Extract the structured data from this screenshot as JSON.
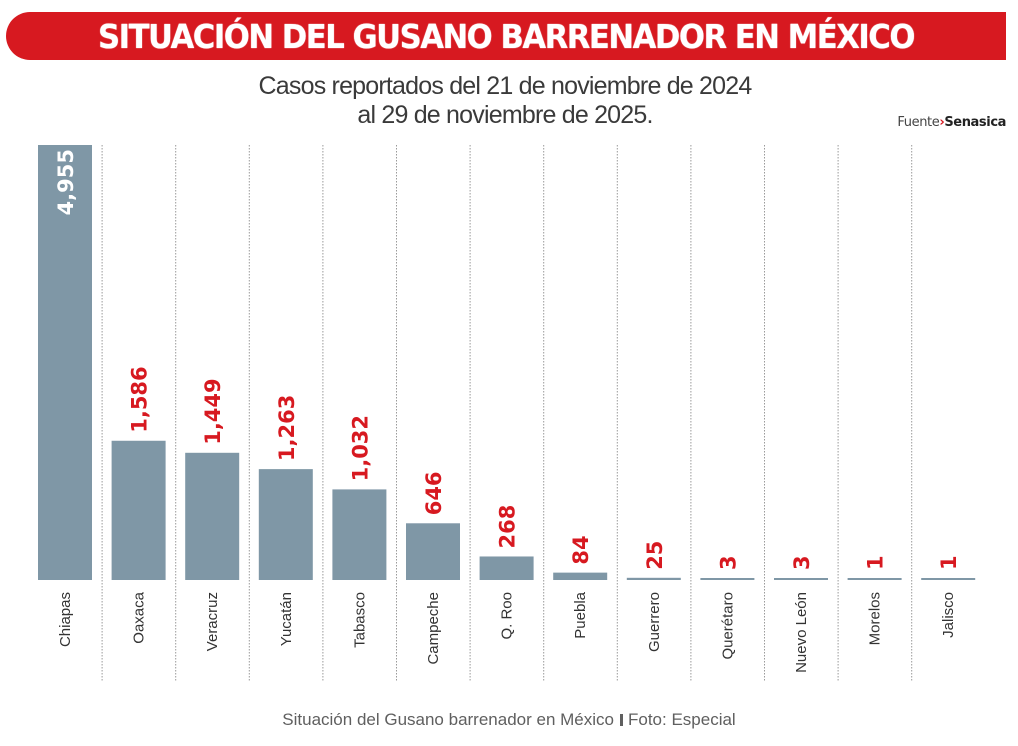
{
  "banner": {
    "title": "SITUACIÓN DEL GUSANO BARRENADOR  EN MÉXICO"
  },
  "subtitle": {
    "line1": "Casos reportados del 21 de noviembre de 2024",
    "line2": "al 29 de noviembre de 2025."
  },
  "source": {
    "label": "Fuente",
    "arrow": "›",
    "org": "Senasica"
  },
  "caption": {
    "text": "Situación del Gusano barrenador en México",
    "credit": "Foto: Especial"
  },
  "colors": {
    "accent": "#d71920",
    "bar": "#7f97a6",
    "label_on_bar": "#ffffff",
    "axis_label": "#333333",
    "divider": "#9a9a9a"
  },
  "chart_data": {
    "type": "bar",
    "title": "SITUACIÓN DEL GUSANO BARRENADOR EN MÉXICO",
    "subtitle": "Casos reportados del 21 de noviembre de 2024 al 29 de noviembre de 2025.",
    "xlabel": "",
    "ylabel": "",
    "categories": [
      "Chiapas",
      "Oaxaca",
      "Veracruz",
      "Yucatán",
      "Tabasco",
      "Campeche",
      "Q. Roo",
      "Puebla",
      "Guerrero",
      "Querétaro",
      "Nuevo León",
      "Morelos",
      "Jalisco"
    ],
    "values": [
      4955,
      1586,
      1449,
      1263,
      1032,
      646,
      268,
      84,
      25,
      3,
      3,
      1,
      1
    ],
    "value_labels": [
      "4,955",
      "1,586",
      "1,449",
      "1,263",
      "1,032",
      "646",
      "268",
      "84",
      "25",
      "3",
      "3",
      "1",
      "1"
    ],
    "ylim": [
      0,
      4955
    ],
    "grid": false,
    "legend": "none",
    "orientation": "vertical",
    "label_rotation": "vertical",
    "source": "Senasica"
  }
}
